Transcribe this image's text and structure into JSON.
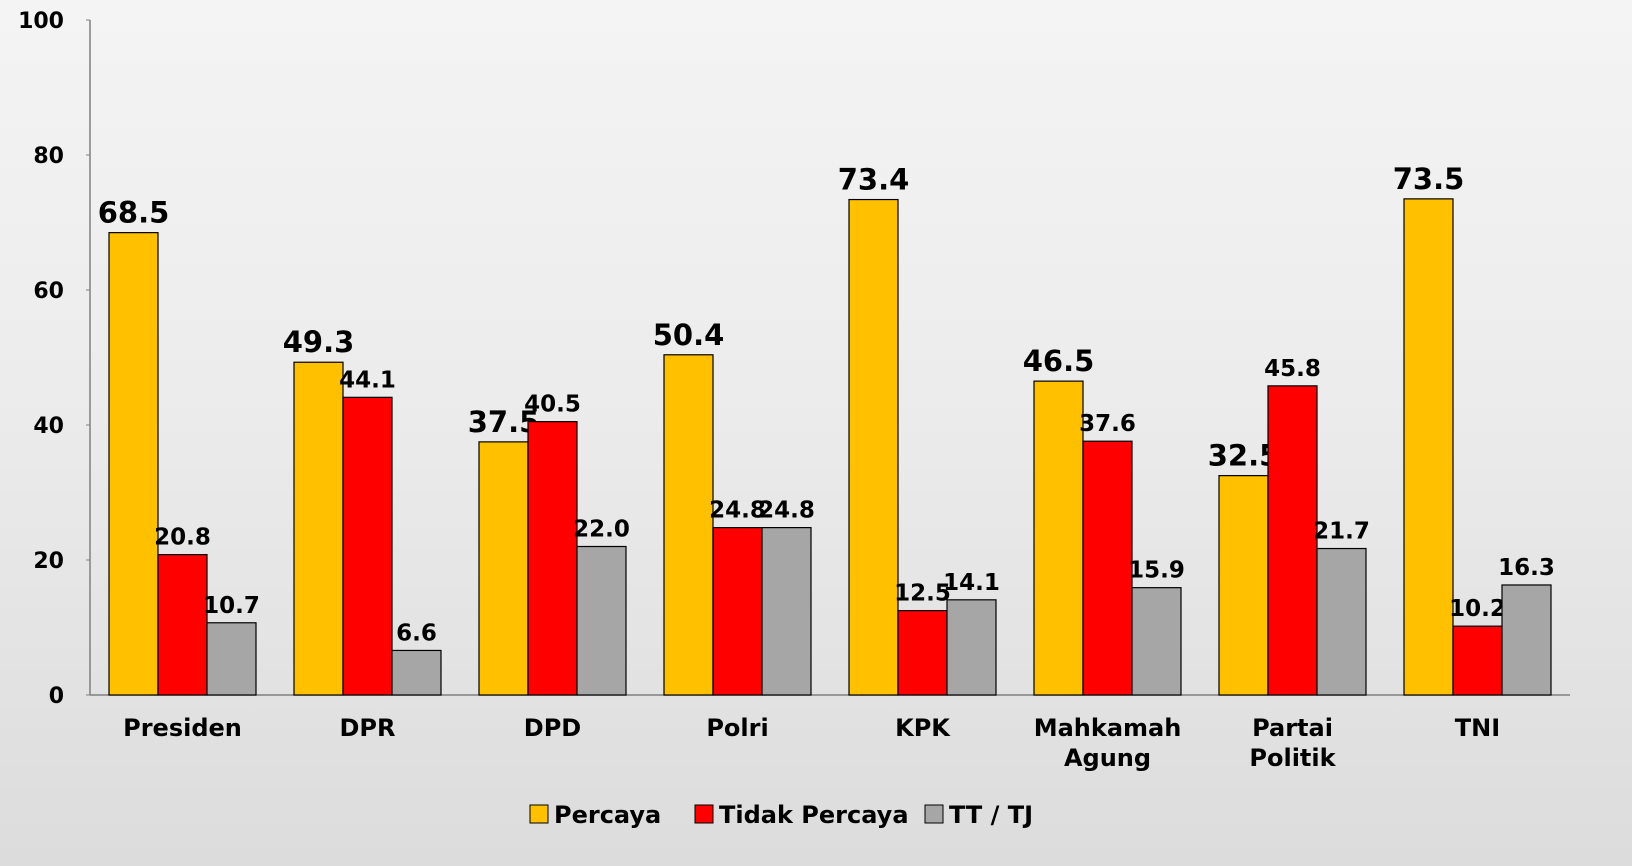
{
  "chart_data": {
    "type": "bar",
    "categories": [
      "Presiden",
      "DPR",
      "DPD",
      "Polri",
      "KPK",
      "Mahkamah Agung",
      "Partai Politik",
      "TNI"
    ],
    "series": [
      {
        "name": "Percaya",
        "color": "#FFC000",
        "values": [
          68.5,
          49.3,
          37.5,
          50.4,
          73.4,
          46.5,
          32.5,
          73.5
        ]
      },
      {
        "name": "Tidak Percaya",
        "color": "#FF0000",
        "values": [
          20.8,
          44.1,
          40.5,
          24.8,
          12.5,
          37.6,
          45.8,
          10.2
        ]
      },
      {
        "name": "TT / TJ",
        "color": "#A6A6A6",
        "values": [
          10.7,
          6.6,
          22.0,
          24.8,
          14.1,
          15.9,
          21.7,
          16.3
        ],
        "value_labels": [
          "10.7",
          "6.6",
          "22.0",
          "24.8",
          "14.1",
          "15.9",
          "21.7",
          "16.3"
        ]
      }
    ],
    "ylim": [
      0,
      100
    ],
    "yticks": [
      0,
      20,
      40,
      60,
      80,
      100
    ],
    "grid": false,
    "legend": "bottom"
  }
}
